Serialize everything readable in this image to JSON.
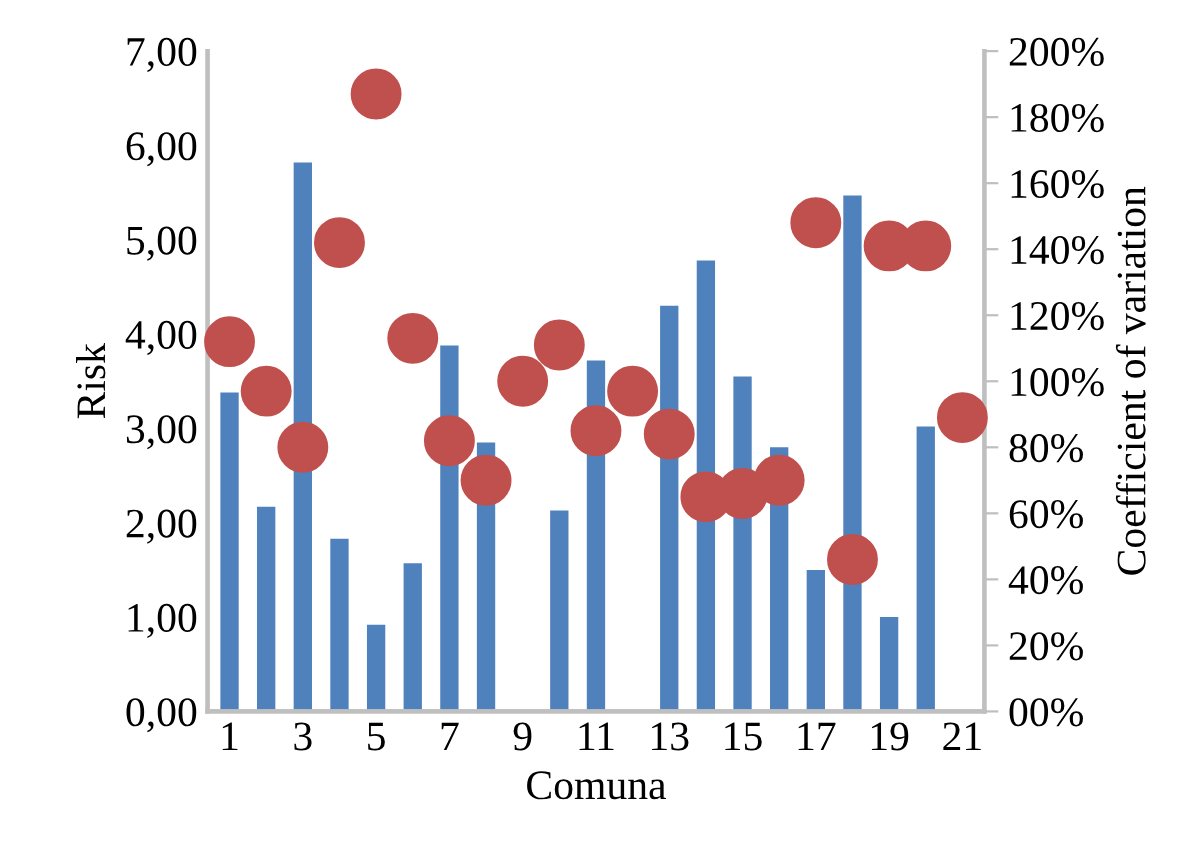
{
  "chart_data": {
    "type": "bar",
    "xlabel": "Comuna",
    "ylabel": "Risk",
    "y2label": "Coefficient of variation",
    "categories": [
      "1",
      null,
      "3",
      null,
      "5",
      null,
      "7",
      null,
      "9",
      null,
      "11",
      null,
      "13",
      null,
      "15",
      null,
      "17",
      null,
      "19",
      null,
      "21"
    ],
    "series": [
      {
        "color": "#4f81bd",
        "values": [
          3.38,
          2.17,
          5.82,
          1.83,
          0.92,
          1.57,
          3.88,
          2.85,
          null,
          2.13,
          3.72,
          null,
          4.3,
          4.78,
          3.55,
          2.8,
          1.5,
          5.47,
          1.0,
          3.02,
          null
        ]
      },
      {
        "type": "scatter",
        "axis": "y2",
        "marker": "circle",
        "color": "#c0504d",
        "values": [
          112,
          97,
          80,
          142,
          187,
          113,
          82,
          70,
          100,
          111,
          85,
          97,
          84,
          65,
          66,
          70,
          148,
          46,
          141,
          141,
          89
        ]
      }
    ],
    "ylim": [
      0,
      7
    ],
    "yticks": [
      {
        "value": 0,
        "label": "0,00"
      },
      {
        "value": 1,
        "label": "1,00"
      },
      {
        "value": 2,
        "label": "2,00"
      },
      {
        "value": 3,
        "label": "3,00"
      },
      {
        "value": 4,
        "label": "4,00"
      },
      {
        "value": 5,
        "label": "5,00"
      },
      {
        "value": 6,
        "label": "6,00"
      },
      {
        "value": 7,
        "label": "7,00"
      }
    ],
    "y2lim": [
      0,
      200
    ],
    "y2ticks": [
      {
        "value": 0,
        "label": "00%"
      },
      {
        "value": 20,
        "label": "20%"
      },
      {
        "value": 40,
        "label": "40%"
      },
      {
        "value": 60,
        "label": "60%"
      },
      {
        "value": 80,
        "label": "80%"
      },
      {
        "value": 100,
        "label": "100%"
      },
      {
        "value": 120,
        "label": "120%"
      },
      {
        "value": 140,
        "label": "140%"
      },
      {
        "value": 160,
        "label": "160%"
      },
      {
        "value": 180,
        "label": "180%"
      },
      {
        "value": 200,
        "label": "200%"
      }
    ],
    "grid": false,
    "legend": false
  }
}
